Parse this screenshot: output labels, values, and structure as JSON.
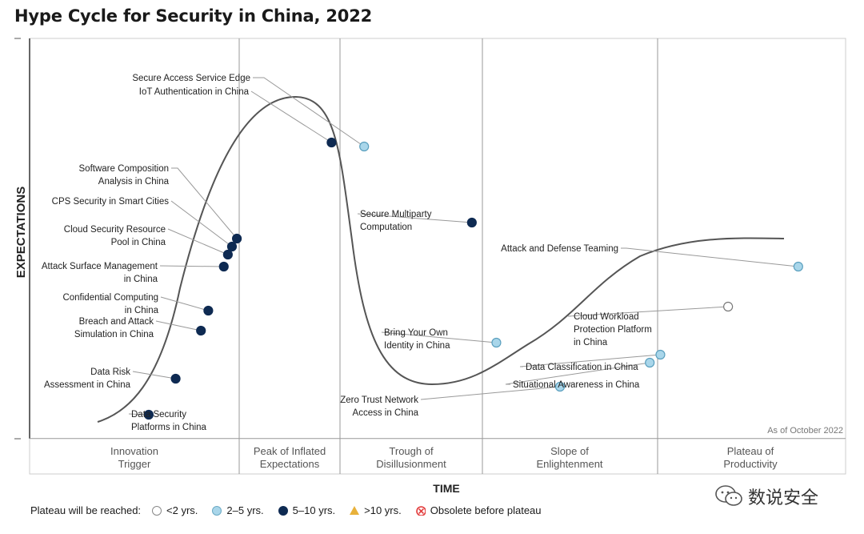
{
  "chart_data": {
    "type": "line",
    "title": "Hype Cycle for Security in China, 2022",
    "xlabel": "TIME",
    "ylabel": "EXPECTATIONS",
    "annotation": "As of October 2022",
    "phases": [
      "Innovation\nTrigger",
      "Peak of Inflated\nExpectations",
      "Trough of\nDisillusionment",
      "Slope of\nEnlightenment",
      "Plateau of\nProductivity"
    ],
    "points": [
      {
        "label": "Secure Access Service Edge",
        "plateau": "2-5",
        "x": 4.1,
        "y": 0.73
      },
      {
        "label": "IoT Authentication in China",
        "plateau": "5-10",
        "x": 3.7,
        "y": 0.74
      },
      {
        "label": "Software Composition\nAnalysis in China",
        "plateau": "5-10",
        "x": 2.54,
        "y": 0.5
      },
      {
        "label": "CPS Security in Smart Cities",
        "plateau": "5-10",
        "x": 2.48,
        "y": 0.48
      },
      {
        "label": "Cloud Security Resource\nPool in China",
        "plateau": "5-10",
        "x": 2.43,
        "y": 0.46
      },
      {
        "label": "Attack Surface Management\nin China",
        "plateau": "5-10",
        "x": 2.38,
        "y": 0.43
      },
      {
        "label": "Confidential Computing\nin China",
        "plateau": "5-10",
        "x": 2.19,
        "y": 0.32
      },
      {
        "label": "Breach and Attack\nSimulation in China",
        "plateau": "5-10",
        "x": 2.1,
        "y": 0.27
      },
      {
        "label": "Data Risk\nAssessment in China",
        "plateau": "5-10",
        "x": 1.79,
        "y": 0.15
      },
      {
        "label": "Data Security\nPlatforms in China",
        "plateau": "5-10",
        "x": 1.46,
        "y": 0.06
      },
      {
        "label": "Secure Multiparty\nComputation",
        "plateau": "5-10",
        "x": 5.42,
        "y": 0.54
      },
      {
        "label": "Bring Your Own\nIdentity in China",
        "plateau": "2-5",
        "x": 5.72,
        "y": 0.24
      },
      {
        "label": "Zero Trust Network\nAccess in China",
        "plateau": "2-5",
        "x": 6.5,
        "y": 0.13
      },
      {
        "label": "Data Classification in China",
        "plateau": "2-5",
        "x": 7.73,
        "y": 0.21
      },
      {
        "label": "Situational Awareness in China",
        "plateau": "2-5",
        "x": 7.6,
        "y": 0.19
      },
      {
        "label": "Cloud Workload\nProtection Platform\nin China",
        "plateau": "<2",
        "x": 8.56,
        "y": 0.33
      },
      {
        "label": "Attack and Defense Teaming",
        "plateau": "2-5",
        "x": 9.42,
        "y": 0.43
      }
    ]
  },
  "legend": {
    "title": "Plateau will be reached:",
    "items": [
      {
        "label": "<2 yrs.",
        "key": "<2",
        "color": "#ffffff"
      },
      {
        "label": "2–5 yrs.",
        "key": "2-5",
        "color": "#a9d6ea"
      },
      {
        "label": "5–10 yrs.",
        "key": "5-10",
        "color": "#0e2a52"
      },
      {
        "label": ">10 yrs.",
        "key": ">10",
        "color": "#e8b13a"
      },
      {
        "label": "Obsolete before plateau",
        "key": "obsolete",
        "color": "#e23b3b"
      }
    ]
  },
  "watermark": {
    "text": "数说安全",
    "icon": "wechat-icon"
  }
}
